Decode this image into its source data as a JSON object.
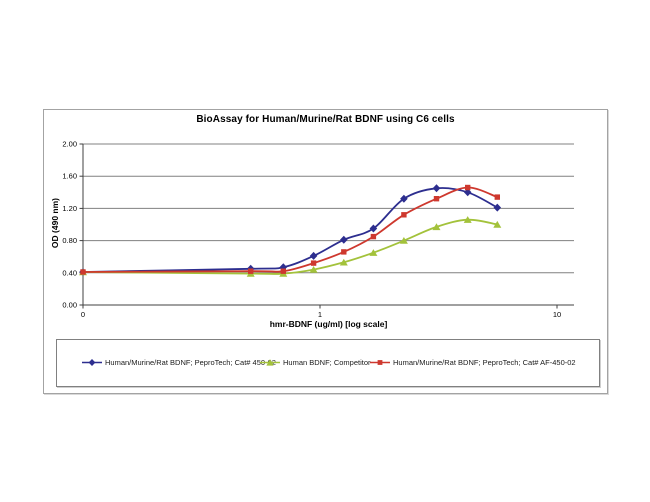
{
  "window": {
    "background_color": "#ffffff",
    "chart_border_color": "#a3a3a3"
  },
  "chart_data": {
    "type": "line",
    "title": "BioAssay for Human/Murine/Rat BDNF using C6 cells",
    "xlabel": "hmr-BDNF (ug/ml) [log scale]",
    "ylabel": "OD (490 nm)",
    "x_scale": "log",
    "grid": "horizontal-only",
    "gridline_color": "#808080",
    "axis_color": "#404040",
    "legend_position": "boxed-below-chart",
    "x_axis": {
      "tick_labels": [
        "0",
        "1",
        "10"
      ],
      "tick_values": [
        0.1,
        1,
        10
      ],
      "min": 0.1,
      "max": 12,
      "zero_plotted_at": 0.1
    },
    "y_axis": {
      "tick_labels": [
        "0.00",
        "0.40",
        "0.80",
        "1.20",
        "1.60",
        "2.00"
      ],
      "tick_values": [
        0,
        0.4,
        0.8,
        1.2,
        1.6,
        2.0
      ],
      "min": 0,
      "max": 2
    },
    "x_ug_ml": [
      0,
      0.51,
      0.7,
      0.94,
      1.26,
      1.68,
      2.26,
      3.1,
      4.2,
      5.6
    ],
    "series": [
      {
        "name": "Human/Murine/Rat BDNF; PeproTech; Cat# 450-02",
        "color": "#2D2E8F",
        "marker": "diamond",
        "values": [
          0.41,
          0.45,
          0.47,
          0.61,
          0.81,
          0.95,
          1.32,
          1.45,
          1.4,
          1.21
        ]
      },
      {
        "name": "Human BDNF; Competitor",
        "color": "#A3C23B",
        "marker": "triangle",
        "values": [
          0.41,
          0.39,
          0.39,
          0.44,
          0.53,
          0.65,
          0.8,
          0.97,
          1.06,
          1.0
        ]
      },
      {
        "name": "Human/Murine/Rat BDNF; PeproTech; Cat# AF-450-02",
        "color": "#CE382E",
        "marker": "square",
        "values": [
          0.41,
          0.42,
          0.42,
          0.52,
          0.66,
          0.85,
          1.12,
          1.32,
          1.46,
          1.34
        ]
      }
    ]
  }
}
